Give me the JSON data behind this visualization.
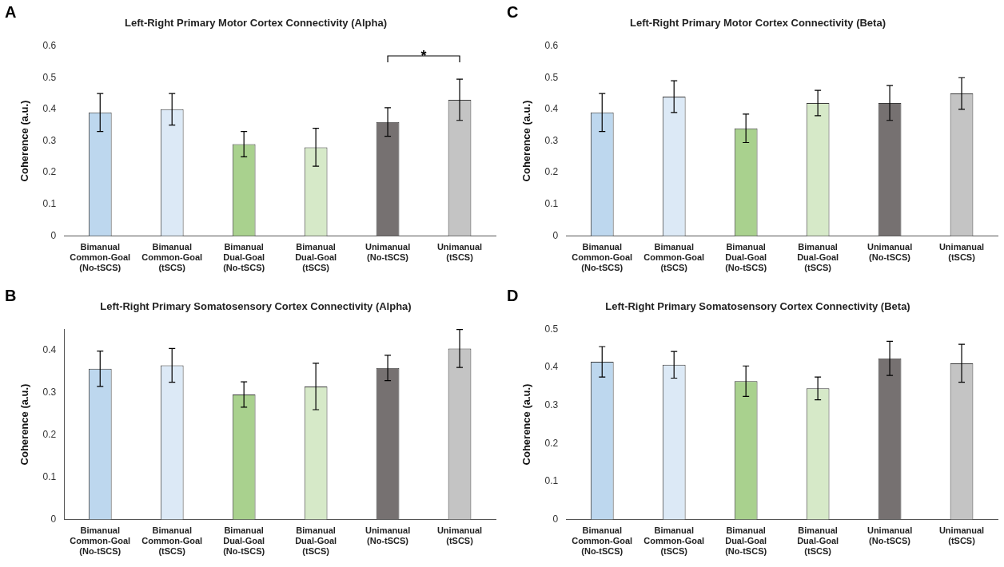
{
  "chart_data": [
    {
      "type": "bar",
      "title": "Left-Right Primary Motor Cortex Connectivity (Alpha)",
      "ylabel": "Coherence (a.u.)",
      "categories": [
        "Bimanual Common-Goal (No-tSCS)",
        "Bimanual Common-Goal (tSCS)",
        "Bimanual Dual-Goal (No-tSCS)",
        "Bimanual Dual-Goal (tSCS)",
        "Unimanual (No-tSCS)",
        "Unimanual (tSCS)"
      ],
      "values": [
        0.39,
        0.4,
        0.29,
        0.28,
        0.36,
        0.43
      ],
      "errors": [
        0.06,
        0.05,
        0.04,
        0.06,
        0.045,
        0.065
      ],
      "colors": [
        "#bdd7ee",
        "#dce9f6",
        "#a9d18e",
        "#d6e9c8",
        "#767171",
        "#c4c4c4"
      ],
      "ylim": [
        0,
        0.6
      ],
      "yticks": [
        0,
        0.1,
        0.2,
        0.3,
        0.4,
        0.5,
        0.6
      ],
      "grid": false,
      "legend": false,
      "annotations": [
        "A",
        "*"
      ]
    },
    {
      "type": "bar",
      "title": "Left-Right Primary Motor Cortex Connectivity (Beta)",
      "ylabel": "Coherence (a.u.)",
      "categories": [
        "Bimanual Common-Goal (No-tSCS)",
        "Bimanual Common-Goal (tSCS)",
        "Bimanual Dual-Goal (No-tSCS)",
        "Bimanual Dual-Goal (tSCS)",
        "Unimanual (No-tSCS)",
        "Unimanual (tSCS)"
      ],
      "values": [
        0.39,
        0.44,
        0.34,
        0.42,
        0.42,
        0.45
      ],
      "errors": [
        0.06,
        0.05,
        0.045,
        0.04,
        0.055,
        0.05
      ],
      "colors": [
        "#bdd7ee",
        "#dce9f6",
        "#a9d18e",
        "#d6e9c8",
        "#767171",
        "#c4c4c4"
      ],
      "ylim": [
        0,
        0.6
      ],
      "yticks": [
        0,
        0.1,
        0.2,
        0.3,
        0.4,
        0.5,
        0.6
      ],
      "grid": false,
      "legend": false,
      "annotations": [
        "C"
      ]
    },
    {
      "type": "bar",
      "title": "Left-Right Primary Somatosensory Cortex Connectivity (Alpha)",
      "ylabel": "Coherence (a.u.)",
      "categories": [
        "Bimanual Common-Goal (No-tSCS)",
        "Bimanual Common-Goal (tSCS)",
        "Bimanual Dual-Goal (No-tSCS)",
        "Bimanual Dual-Goal (tSCS)",
        "Unimanual (No-tSCS)",
        "Unimanual (tSCS)"
      ],
      "values": [
        0.357,
        0.365,
        0.296,
        0.315,
        0.359,
        0.405
      ],
      "errors": [
        0.042,
        0.04,
        0.03,
        0.055,
        0.03,
        0.045
      ],
      "colors": [
        "#bdd7ee",
        "#dce9f6",
        "#a9d18e",
        "#d6e9c8",
        "#767171",
        "#c4c4c4"
      ],
      "ylim": [
        0,
        0.45
      ],
      "yticks": [
        0,
        0.1,
        0.2,
        0.3,
        0.4
      ],
      "grid": false,
      "legend": false,
      "annotations": [
        "B"
      ]
    },
    {
      "type": "bar",
      "title": "Left-Right Primary Somatosensory Cortex Connectivity (Beta)",
      "ylabel": "Coherence (a.u.)",
      "categories": [
        "Bimanual Common-Goal (No-tSCS)",
        "Bimanual Common-Goal (tSCS)",
        "Bimanual Dual-Goal (No-tSCS)",
        "Bimanual Dual-Goal (tSCS)",
        "Unimanual (No-tSCS)",
        "Unimanual (tSCS)"
      ],
      "values": [
        0.415,
        0.407,
        0.364,
        0.345,
        0.424,
        0.411
      ],
      "errors": [
        0.04,
        0.035,
        0.04,
        0.03,
        0.045,
        0.05
      ],
      "colors": [
        "#bdd7ee",
        "#dce9f6",
        "#a9d18e",
        "#d6e9c8",
        "#767171",
        "#c4c4c4"
      ],
      "ylim": [
        0,
        0.5
      ],
      "yticks": [
        0,
        0.1,
        0.2,
        0.3,
        0.4,
        0.5
      ],
      "grid": false,
      "legend": false,
      "annotations": [
        "D"
      ]
    }
  ]
}
